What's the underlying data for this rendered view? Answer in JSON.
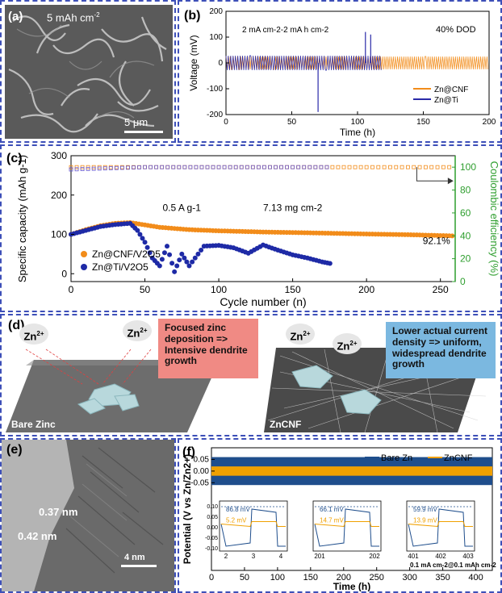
{
  "panel_a": {
    "label": "(a)",
    "title": "5 mAh cm",
    "title_sup": "-2",
    "scale": "5 μm"
  },
  "chart_data": [
    {
      "id": "b",
      "type": "line",
      "label": "(b)",
      "annotation_left": "2 mA cm-2-2 mA h cm-2",
      "annotation_right": "40% DOD",
      "xlabel": "Time (h)",
      "ylabel": "Voltage (mV)",
      "xlim": [
        0,
        200
      ],
      "ylim": [
        -200,
        200
      ],
      "xticks": [
        "0",
        "50",
        "100",
        "150",
        "200"
      ],
      "yticks": [
        "200",
        "100",
        "0",
        "-100",
        "-200"
      ],
      "series": [
        {
          "name": "Zn@CNF",
          "color": "#f28c1a",
          "x_range": [
            0,
            200
          ],
          "amplitude": 25
        },
        {
          "name": "Zn@Ti",
          "color": "#2a2aa8",
          "x_range": [
            0,
            118
          ],
          "amplitude": 28,
          "spikes": [
            {
              "x": 70,
              "y": -190
            },
            {
              "x": 106,
              "y": 120
            },
            {
              "x": 110,
              "y": 110
            }
          ]
        }
      ],
      "legend": "bottom-right"
    },
    {
      "id": "c",
      "type": "scatter",
      "label": "(c)",
      "xlabel": "Cycle number (n)",
      "ylabel_left": "Specific capacity (mAh g-1)",
      "ylabel_right": "Coulombic efficiency (%)",
      "xlim": [
        0,
        260
      ],
      "ylim_left": [
        -20,
        300
      ],
      "ylim_right": [
        0,
        110
      ],
      "xticks": [
        "0",
        "50",
        "100",
        "150",
        "200",
        "250"
      ],
      "yticks_left": [
        "300",
        "200",
        "100",
        "0"
      ],
      "yticks_right": [
        "100",
        "80",
        "60",
        "40",
        "20",
        "0"
      ],
      "annotation_rate": "0.5 A g-1",
      "annotation_loading": "7.13 mg cm-2",
      "annotation_retention": "92.1%",
      "series": [
        {
          "name": "Zn@CNF/V2O5",
          "color": "#f28c1a",
          "x": [
            0,
            10,
            20,
            30,
            40,
            50,
            60,
            80,
            100,
            130,
            160,
            200,
            230,
            260
          ],
          "y": [
            100,
            112,
            122,
            128,
            130,
            124,
            118,
            112,
            109,
            106,
            104,
            101,
            99,
            96
          ]
        },
        {
          "name": "Zn@Ti/V2O5",
          "color": "#1e2aa6",
          "x": [
            0,
            10,
            20,
            30,
            40,
            45,
            50,
            55,
            60,
            65,
            70,
            75,
            80,
            90,
            100,
            110,
            120,
            130,
            140,
            150,
            160,
            170,
            177
          ],
          "y": [
            100,
            110,
            120,
            125,
            128,
            110,
            80,
            40,
            20,
            70,
            5,
            50,
            20,
            70,
            72,
            66,
            52,
            73,
            60,
            48,
            40,
            30,
            25
          ]
        },
        {
          "name": "CE Zn@CNF",
          "color": "#f28c1a",
          "axis": "right",
          "x": [
            0,
            50,
            100,
            150,
            200,
            260
          ],
          "y": [
            100,
            100,
            100,
            100,
            100,
            100
          ]
        },
        {
          "name": "CE Zn@Ti",
          "color": "#6a5acd",
          "axis": "right",
          "x": [
            0,
            50,
            100,
            150,
            177
          ],
          "y": [
            98,
            100,
            100,
            100,
            100
          ]
        }
      ],
      "legend": "bottom-left"
    },
    {
      "id": "f",
      "type": "line",
      "label": "(f)",
      "xlabel": "Time (h)",
      "ylabel": "Potential (V vs Zn/Zn2+)",
      "xlim": [
        0,
        425
      ],
      "ylim": [
        -0.1,
        0.1
      ],
      "xticks": [
        "0",
        "50",
        "100",
        "150",
        "200",
        "250",
        "300",
        "350",
        "400"
      ],
      "yticks": [
        "0.05",
        "0.00",
        "-0.05"
      ],
      "series": [
        {
          "name": "Bare Zn",
          "color": "#1f4e8c",
          "amplitude": 0.06
        },
        {
          "name": "ZnCNF",
          "color": "#f0a000",
          "amplitude": 0.02
        }
      ],
      "legend": "top-right",
      "condition": "0.1 mA cm-2@0.1 mAh cm-2",
      "insets": [
        {
          "xticks": [
            "2",
            "3",
            "4"
          ],
          "yticks": [
            "0.10",
            "0.05",
            "0.00",
            "-0.05",
            "-0.10"
          ],
          "bare_mv": "86.8 mV",
          "cnf_mv": "5.2 mV"
        },
        {
          "xticks": [
            "201",
            "202"
          ],
          "bare_mv": "66.1 mV",
          "cnf_mv": "14.7 mV"
        },
        {
          "xticks": [
            "401",
            "402",
            "403"
          ],
          "bare_mv": "59.9 mV",
          "cnf_mv": "13.9 mV"
        }
      ]
    }
  ],
  "panel_d": {
    "label": "(d)",
    "ion": "Zn",
    "ion_charge": "2+",
    "left_text": "Focused zinc deposition => Intensive dendrite growth",
    "right_text": "Lower actual current density => uniform, widespread dendrite growth",
    "left_caption": "Bare Zinc",
    "right_caption": "ZnCNF"
  },
  "panel_e": {
    "label": "(e)",
    "d1": "0.37 nm",
    "d2": "0.42 nm",
    "scale": "4 nm"
  },
  "colors": {
    "border": "#3d4fb8",
    "cnf": "#f28c1a",
    "ti": "#2a2aa8",
    "ce_axis": "#2e9e2e",
    "focused_box": "#f08a84",
    "lower_box": "#7bb8e0"
  }
}
